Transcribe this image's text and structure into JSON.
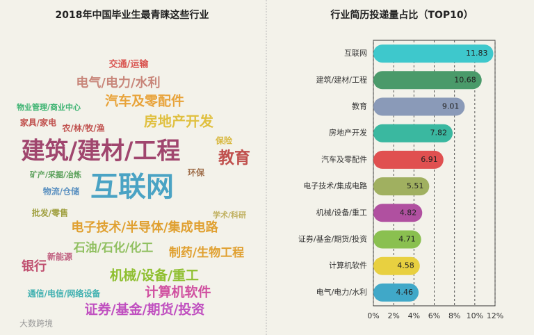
{
  "chart_data": [
    {
      "type": "wordcloud",
      "title": "2018年中国毕业生最青睐这些行业",
      "words": [
        {
          "text": "交通/运输",
          "color": "#d9534f"
        },
        {
          "text": "电气/电力/水利",
          "color": "#c8867a"
        },
        {
          "text": "汽车及零配件",
          "color": "#e8a33a"
        },
        {
          "text": "物业管理/商业中心",
          "color": "#3cb371"
        },
        {
          "text": "家具/家电",
          "color": "#c0504d"
        },
        {
          "text": "农/林/牧/渔",
          "color": "#c0504d"
        },
        {
          "text": "房地产开发",
          "color": "#e0c040"
        },
        {
          "text": "保险",
          "color": "#d8b840"
        },
        {
          "text": "建筑/建材/工程",
          "color": "#a0466e"
        },
        {
          "text": "教育",
          "color": "#c0504d"
        },
        {
          "text": "环保",
          "color": "#a0704d"
        },
        {
          "text": "矿产/采掘/冶炼",
          "color": "#5aa05a"
        },
        {
          "text": "互联网",
          "color": "#4aa3c4"
        },
        {
          "text": "物流/仓储",
          "color": "#5a90c0"
        },
        {
          "text": "批发/零售",
          "color": "#a0a040"
        },
        {
          "text": "学术/科研",
          "color": "#c0b060"
        },
        {
          "text": "电子技术/半导体/集成电路",
          "color": "#e0a030"
        },
        {
          "text": "新能源",
          "color": "#c06080"
        },
        {
          "text": "石油/石化/化工",
          "color": "#8fbf5f"
        },
        {
          "text": "制药/生物工程",
          "color": "#e0a030"
        },
        {
          "text": "银行",
          "color": "#c05070"
        },
        {
          "text": "机械/设备/重工",
          "color": "#8fbf30"
        },
        {
          "text": "计算机软件",
          "color": "#d050a0"
        },
        {
          "text": "通信/电信/网络设备",
          "color": "#3fb0b0"
        },
        {
          "text": "证券/基金/期货/投资",
          "color": "#c050c0"
        }
      ],
      "watermark": "大数跨境"
    },
    {
      "type": "bar",
      "orientation": "horizontal",
      "title": "行业简历投递量占比（TOP10）",
      "categories": [
        "互联网",
        "建筑/建材/工程",
        "教育",
        "房地产开发",
        "汽车及零配件",
        "电子技术/集成电路",
        "机械/设备/重工",
        "证券/基金/期货/投资",
        "计算机软件",
        "电气/电力/水利"
      ],
      "values": [
        11.83,
        10.68,
        9.01,
        7.82,
        6.91,
        5.51,
        4.82,
        4.71,
        4.58,
        4.46
      ],
      "colors": [
        "#3ec8cc",
        "#4a9a6a",
        "#8a9ab8",
        "#3ab8a0",
        "#e05050",
        "#a0b060",
        "#b050a0",
        "#8ac050",
        "#e8d040",
        "#40a8c8"
      ],
      "xlim": [
        0,
        12
      ],
      "xticks": [
        {
          "value": 0,
          "label": "0%"
        },
        {
          "value": 2,
          "label": "2%"
        },
        {
          "value": 4,
          "label": "4%"
        },
        {
          "value": 6,
          "label": "6%"
        },
        {
          "value": 8,
          "label": "8%"
        },
        {
          "value": 10,
          "label": "10%"
        },
        {
          "value": 12,
          "label": "12%"
        }
      ],
      "grid": true
    }
  ]
}
